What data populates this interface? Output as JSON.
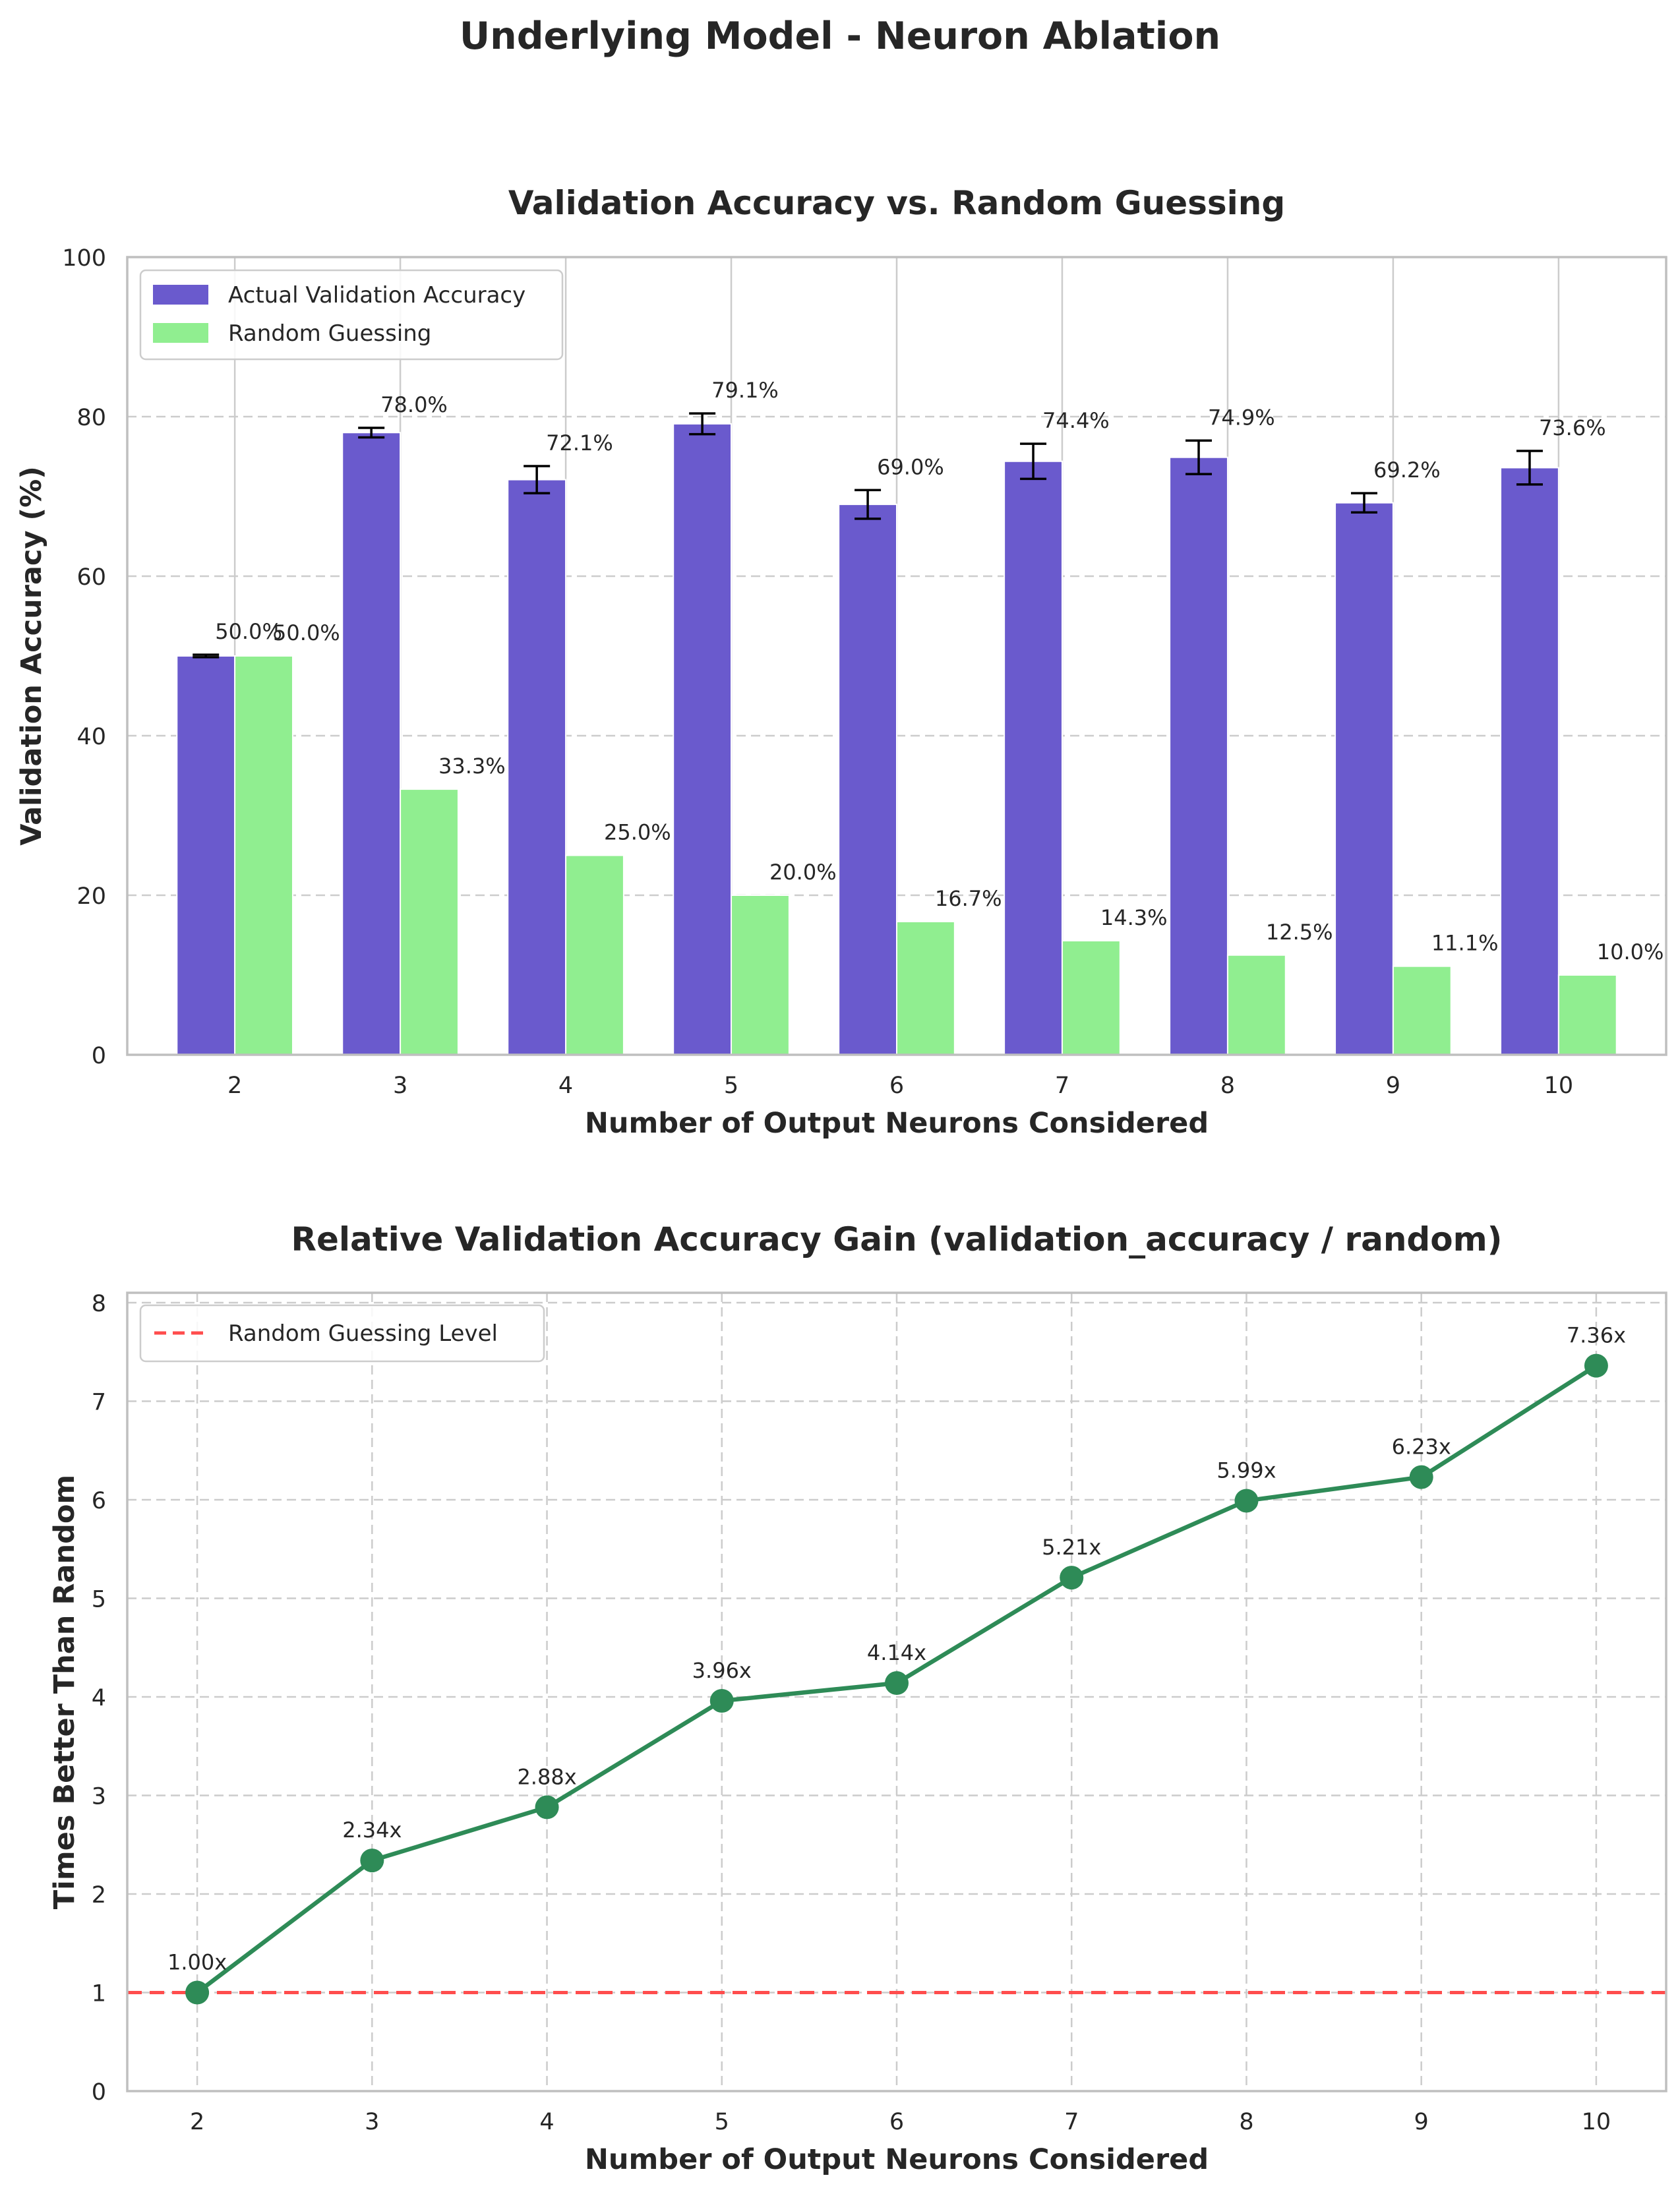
{
  "figure": {
    "suptitle": "Underlying Model - Neuron Ablation"
  },
  "chart_data": [
    {
      "type": "bar",
      "title": "Validation Accuracy vs. Random Guessing",
      "xlabel": "Number of Output Neurons Considered",
      "ylabel": "Validation Accuracy (%)",
      "ylim": [
        0,
        100
      ],
      "yticks": [
        0,
        20,
        40,
        60,
        80,
        100
      ],
      "categories": [
        "2",
        "3",
        "4",
        "5",
        "6",
        "7",
        "8",
        "9",
        "10"
      ],
      "series": [
        {
          "name": "Actual Validation Accuracy",
          "color": "#6a5acd",
          "values": [
            50.0,
            78.0,
            72.1,
            79.1,
            69.0,
            74.4,
            74.9,
            69.2,
            73.6
          ],
          "error": [
            0.15,
            0.6,
            1.7,
            1.3,
            1.8,
            2.2,
            2.1,
            1.2,
            2.1
          ],
          "labels": [
            "50.0%",
            "78.0%",
            "72.1%",
            "79.1%",
            "69.0%",
            "74.4%",
            "74.9%",
            "69.2%",
            "73.6%"
          ]
        },
        {
          "name": "Random Guessing",
          "color": "#90ee90",
          "values": [
            50.0,
            33.3,
            25.0,
            20.0,
            16.7,
            14.3,
            12.5,
            11.1,
            10.0
          ],
          "labels": [
            "50.0%",
            "33.3%",
            "25.0%",
            "20.0%",
            "16.7%",
            "14.3%",
            "12.5%",
            "11.1%",
            "10.0%"
          ]
        }
      ],
      "legend_position": "upper-left",
      "grid": true
    },
    {
      "type": "line",
      "title": "Relative Validation Accuracy Gain (validation_accuracy / random)",
      "xlabel": "Number of Output Neurons Considered",
      "ylabel": "Times Better Than Random",
      "ylim": [
        0,
        8.1
      ],
      "yticks": [
        0,
        1,
        2,
        3,
        4,
        5,
        6,
        7,
        8
      ],
      "x": [
        2,
        3,
        4,
        5,
        6,
        7,
        8,
        9,
        10
      ],
      "series": [
        {
          "color": "#2e8b57",
          "values": [
            1.0,
            2.34,
            2.88,
            3.96,
            4.14,
            5.21,
            5.99,
            6.23,
            7.36
          ],
          "labels": [
            "1.00x",
            "2.34x",
            "2.88x",
            "3.96x",
            "4.14x",
            "5.21x",
            "5.99x",
            "6.23x",
            "7.36x"
          ]
        }
      ],
      "reference_line": {
        "name": "Random Guessing Level",
        "y": 1,
        "color": "#ff4d4d",
        "style": "dashed"
      },
      "legend_position": "upper-left",
      "grid": true
    }
  ]
}
